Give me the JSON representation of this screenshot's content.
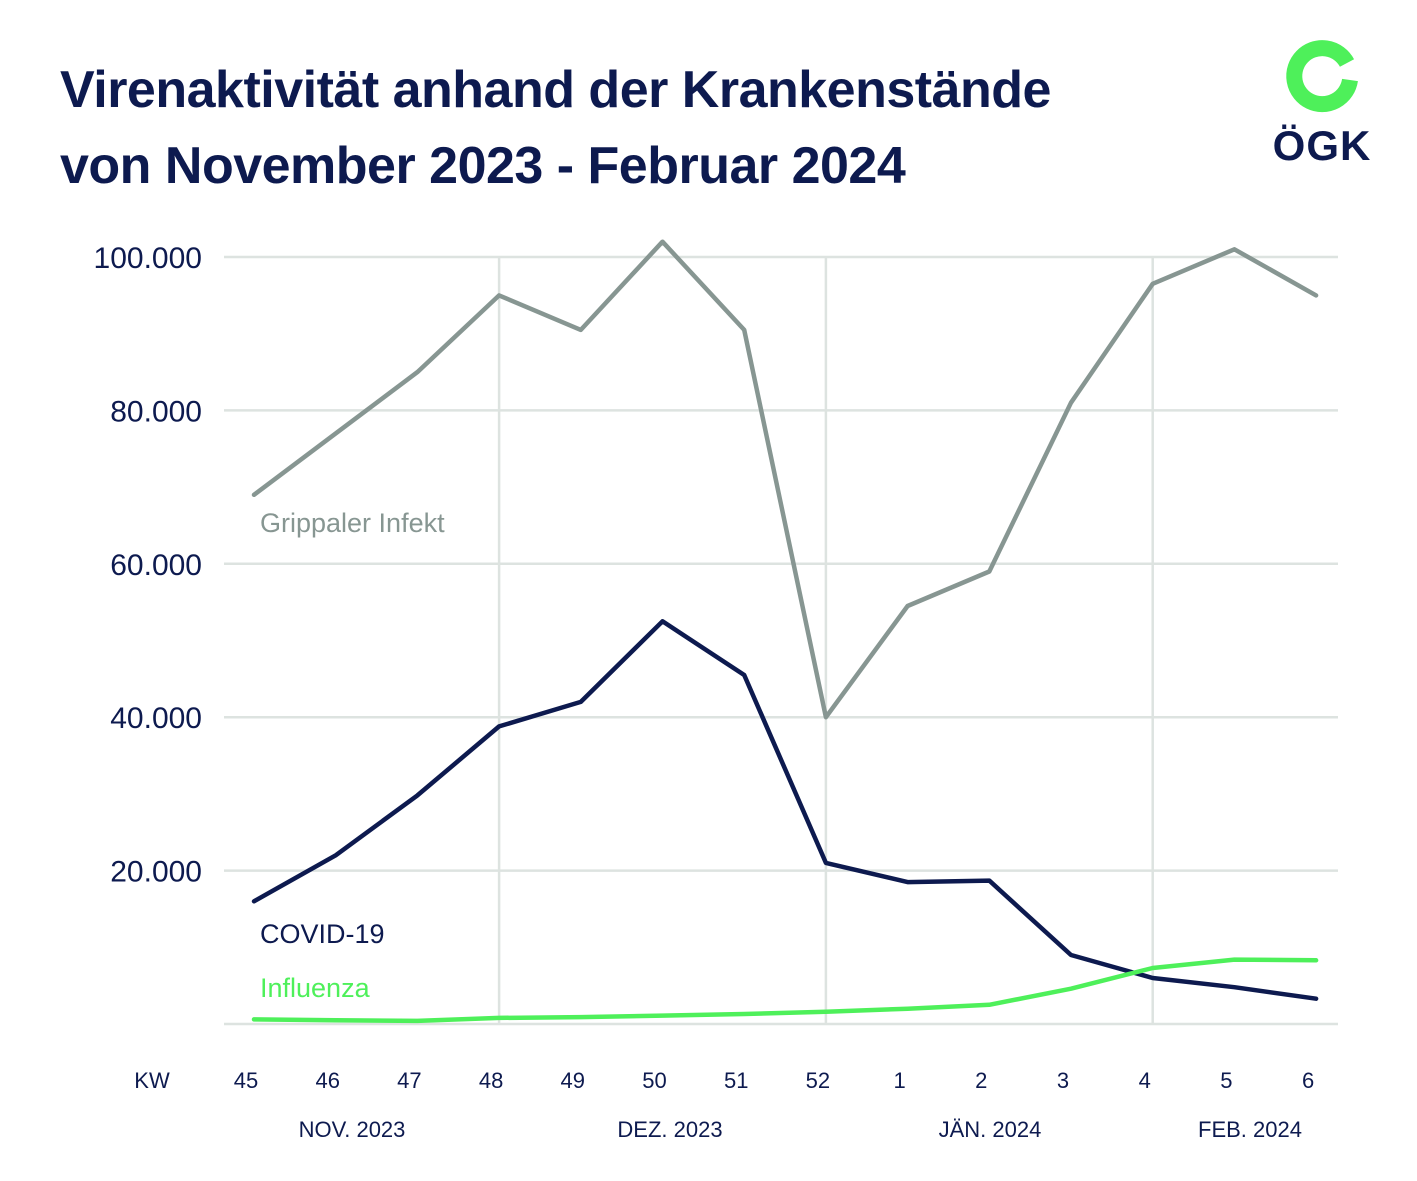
{
  "title_line1": "Virenaktivität anhand der Krankenstände",
  "title_line2": "von November 2023 - Februar 2024",
  "logo_text": "ÖGK",
  "colors": {
    "navy": "#0d1a4f",
    "gray": "#879692",
    "green": "#4ef05a",
    "grid": "#dde3e0"
  },
  "chart_data": {
    "type": "line",
    "xlabel": "KW",
    "ylabel": "",
    "categories": [
      "45",
      "46",
      "47",
      "48",
      "49",
      "50",
      "51",
      "52",
      "1",
      "2",
      "3",
      "4",
      "5",
      "6"
    ],
    "month_labels": [
      "NOV. 2023",
      "DEZ. 2023",
      "JÄN. 2024",
      "FEB. 2024"
    ],
    "ylim": [
      0,
      100000
    ],
    "y_ticks": [
      20000,
      40000,
      60000,
      80000,
      100000
    ],
    "y_tick_labels": [
      "20.000",
      "40.000",
      "60.000",
      "80.000",
      "100.000"
    ],
    "grid": true,
    "series": [
      {
        "name": "Grippaler Infekt",
        "color": "#879692",
        "values": [
          69000,
          77000,
          85000,
          95000,
          90500,
          102000,
          90500,
          40000,
          54500,
          59000,
          81000,
          96500,
          101000,
          95000
        ]
      },
      {
        "name": "COVID-19",
        "color": "#0d1a4f",
        "values": [
          16000,
          22000,
          29800,
          38800,
          42000,
          52500,
          45500,
          21000,
          18500,
          18700,
          9000,
          6000,
          4800,
          3300
        ]
      },
      {
        "name": "Influenza",
        "color": "#4ef05a",
        "values": [
          600,
          500,
          400,
          800,
          900,
          1100,
          1300,
          1600,
          2000,
          2500,
          4600,
          7300,
          8400,
          8300
        ]
      }
    ]
  }
}
